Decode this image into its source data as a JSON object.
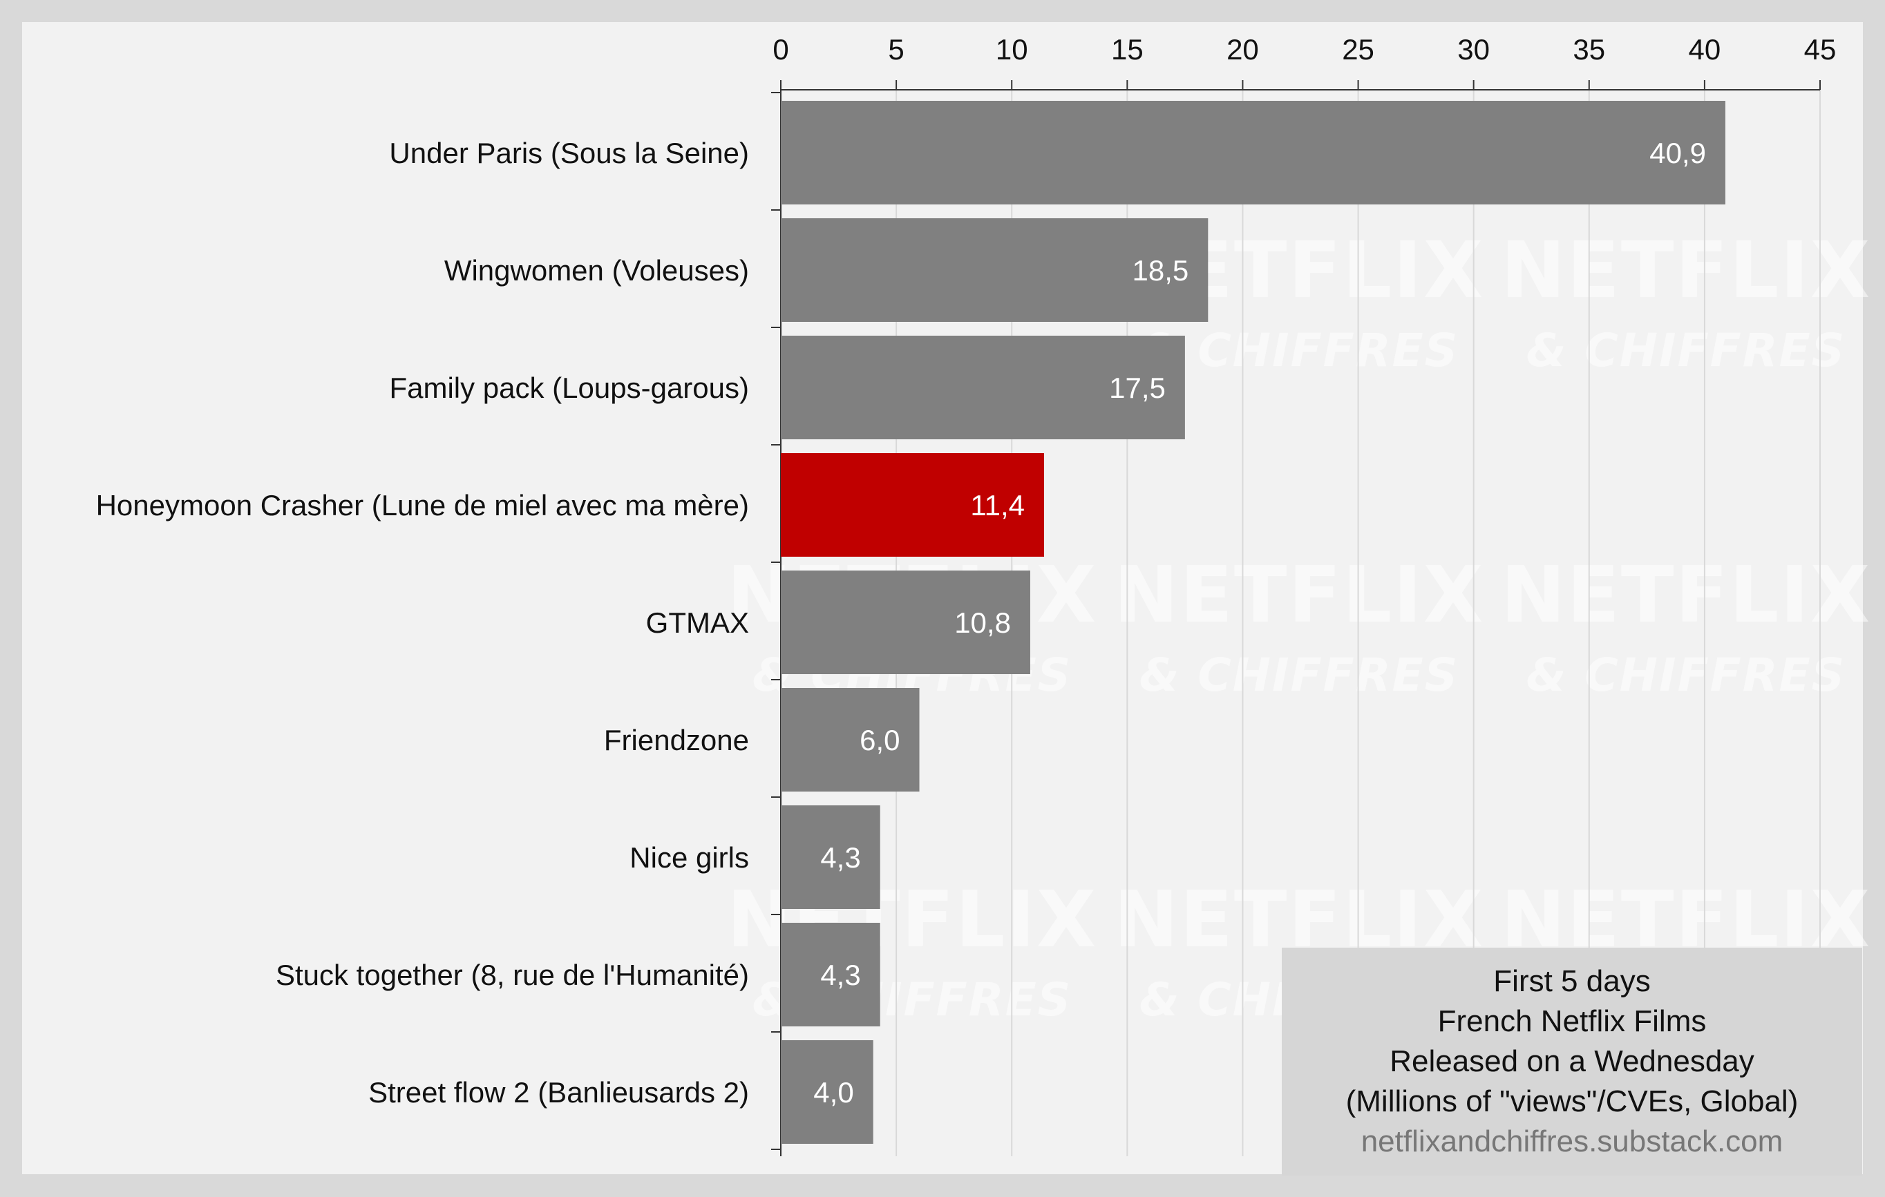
{
  "chart_data": {
    "type": "bar",
    "orientation": "horizontal",
    "categories": [
      "Under Paris (Sous la Seine)",
      "Wingwomen (Voleuses)",
      "Family pack (Loups-garous)",
      "Honeymoon Crasher (Lune de miel avec ma mère)",
      "GTMAX",
      "Friendzone",
      "Nice girls",
      "Stuck together (8, rue de l'Humanité)",
      "Street flow 2 (Banlieusards 2)"
    ],
    "values": [
      40.9,
      18.5,
      17.5,
      11.4,
      10.8,
      6.0,
      4.3,
      4.3,
      4.0
    ],
    "value_labels": [
      "40,9",
      "18,5",
      "17,5",
      "11,4",
      "10,8",
      "6,0",
      "4,3",
      "4,3",
      "4,0"
    ],
    "highlight_index": 3,
    "colors": {
      "bar": "#808080",
      "highlight": "#c00000",
      "plot_bg": "#f2f2f2",
      "gridline": "#d9d9d9"
    },
    "xlim": [
      0,
      45
    ],
    "xticks": [
      "0",
      "5",
      "10",
      "15",
      "20",
      "25",
      "30",
      "35",
      "40",
      "45"
    ],
    "x_axis_position": "top",
    "grid": true,
    "watermark": {
      "line1": "NETFLIX",
      "line2": "& CHIFFRES"
    }
  },
  "legend_box": {
    "lines": [
      "First 5 days",
      "French Netflix Films",
      "Released on a Wednesday",
      "(Millions of \"views\"/CVEs, Global)"
    ],
    "source": "netflixandchiffres.substack.com",
    "placement": "bottom-right"
  }
}
